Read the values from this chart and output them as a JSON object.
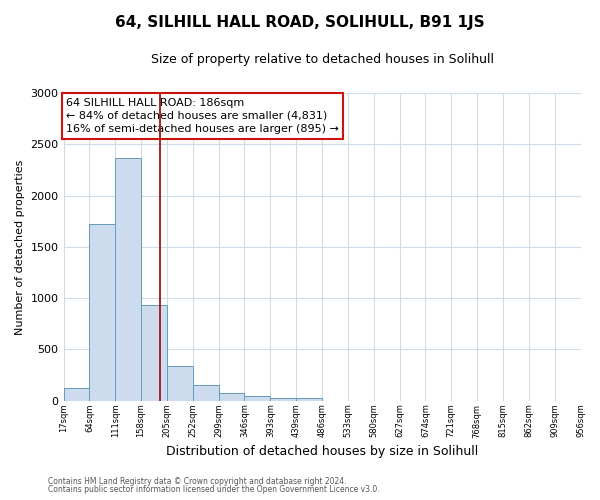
{
  "title": "64, SILHILL HALL ROAD, SOLIHULL, B91 1JS",
  "subtitle": "Size of property relative to detached houses in Solihull",
  "xlabel": "Distribution of detached houses by size in Solihull",
  "ylabel": "Number of detached properties",
  "bar_values": [
    120,
    1720,
    2370,
    930,
    340,
    150,
    80,
    50,
    30,
    25,
    0,
    0,
    0,
    0,
    0,
    0,
    0,
    0,
    0,
    0
  ],
  "bar_labels": [
    "17sqm",
    "64sqm",
    "111sqm",
    "158sqm",
    "205sqm",
    "252sqm",
    "299sqm",
    "346sqm",
    "393sqm",
    "439sqm",
    "486sqm",
    "533sqm",
    "580sqm",
    "627sqm",
    "674sqm",
    "721sqm",
    "768sqm",
    "815sqm",
    "862sqm",
    "909sqm",
    "956sqm"
  ],
  "bar_color": "#ccdcee",
  "bar_edge_color": "#6699bb",
  "vline_x": 3.72,
  "vline_color": "#aa1111",
  "annotation_box_text": "64 SILHILL HALL ROAD: 186sqm\n← 84% of detached houses are smaller (4,831)\n16% of semi-detached houses are larger (895) →",
  "annotation_box_color": "#cc1111",
  "ylim": [
    0,
    3000
  ],
  "yticks": [
    0,
    500,
    1000,
    1500,
    2000,
    2500,
    3000
  ],
  "footer_line1": "Contains HM Land Registry data © Crown copyright and database right 2024.",
  "footer_line2": "Contains public sector information licensed under the Open Government Licence v3.0.",
  "plot_bg_color": "#ffffff",
  "fig_bg_color": "#ffffff",
  "grid_color": "#d0dce8",
  "title_fontsize": 11,
  "subtitle_fontsize": 9,
  "annotation_fontsize": 8
}
